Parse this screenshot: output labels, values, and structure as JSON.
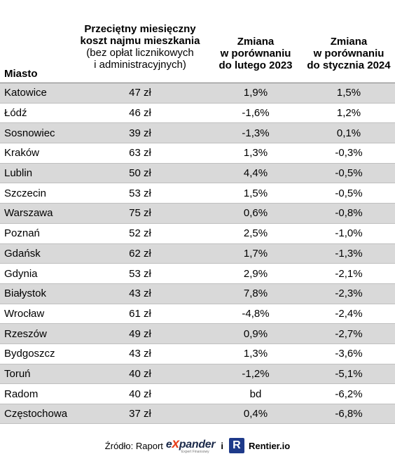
{
  "headers": {
    "city": "Miasto",
    "cost_line1": "Przeciętny miesięczny",
    "cost_line2": "koszt najmu mieszkania",
    "cost_line3": "(bez opłat licznikowych",
    "cost_line4": "i administracyjnych)",
    "feb_line1": "Zmiana",
    "feb_line2": "w porównaniu",
    "feb_line3": "do lutego 2023",
    "jan_line1": "Zmiana",
    "jan_line2": "w porównaniu",
    "jan_line3": "do stycznia 2024"
  },
  "rows": [
    {
      "city": "Katowice",
      "cost": "47 zł",
      "feb": "1,9%",
      "jan": "1,5%"
    },
    {
      "city": "Łódź",
      "cost": "46 zł",
      "feb": "-1,6%",
      "jan": "1,2%"
    },
    {
      "city": "Sosnowiec",
      "cost": "39 zł",
      "feb": "-1,3%",
      "jan": "0,1%"
    },
    {
      "city": "Kraków",
      "cost": "63 zł",
      "feb": "1,3%",
      "jan": "-0,3%"
    },
    {
      "city": "Lublin",
      "cost": "50 zł",
      "feb": "4,4%",
      "jan": "-0,5%"
    },
    {
      "city": "Szczecin",
      "cost": "53 zł",
      "feb": "1,5%",
      "jan": "-0,5%"
    },
    {
      "city": "Warszawa",
      "cost": "75 zł",
      "feb": "0,6%",
      "jan": "-0,8%"
    },
    {
      "city": "Poznań",
      "cost": "52 zł",
      "feb": "2,5%",
      "jan": "-1,0%"
    },
    {
      "city": "Gdańsk",
      "cost": "62 zł",
      "feb": "1,7%",
      "jan": "-1,3%"
    },
    {
      "city": "Gdynia",
      "cost": "53 zł",
      "feb": "2,9%",
      "jan": "-2,1%"
    },
    {
      "city": "Białystok",
      "cost": "43 zł",
      "feb": "7,8%",
      "jan": "-2,3%"
    },
    {
      "city": "Wrocław",
      "cost": "61 zł",
      "feb": "-4,8%",
      "jan": "-2,4%"
    },
    {
      "city": "Rzeszów",
      "cost": "49 zł",
      "feb": "0,9%",
      "jan": "-2,7%"
    },
    {
      "city": "Bydgoszcz",
      "cost": "43 zł",
      "feb": "1,3%",
      "jan": "-3,6%"
    },
    {
      "city": "Toruń",
      "cost": "40 zł",
      "feb": "-1,2%",
      "jan": "-5,1%"
    },
    {
      "city": "Radom",
      "cost": "40 zł",
      "feb": "bd",
      "jan": "-6,2%"
    },
    {
      "city": "Częstochowa",
      "cost": "37 zł",
      "feb": "0,4%",
      "jan": "-6,8%"
    }
  ],
  "footer": {
    "source_label": "Źródło: Raport",
    "expander_pre": "e",
    "expander_x": "x",
    "expander_post": "pander",
    "expander_tagline": "Expert Finansowy",
    "conjunction": "i",
    "rentier_mark": "R",
    "rentier_name": "Rentier.io"
  },
  "colors": {
    "row_shade": "#d9d9d9",
    "expander_navy": "#1b2a4a",
    "expander_orange": "#e8401c",
    "rentier_blue": "#1e3a8a"
  }
}
